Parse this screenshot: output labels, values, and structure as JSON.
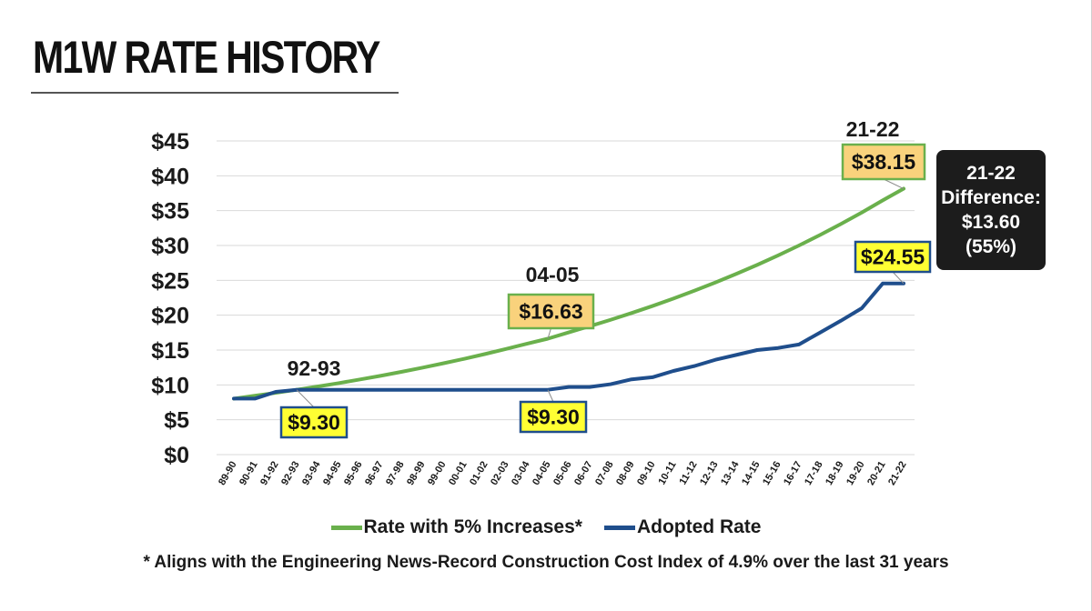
{
  "title": "M1W RATE HISTORY",
  "legend": {
    "items": [
      {
        "label": "Rate with 5% Increases*",
        "color": "#6ab04c"
      },
      {
        "label": "Adopted Rate",
        "color": "#1f4e8c"
      }
    ],
    "placement": "bottom"
  },
  "footnote": "* Aligns with the Engineering News-Record Construction Cost Index of 4.9% over the last 31 years",
  "difference_box": {
    "year": "21-22",
    "label": "Difference:",
    "amount": "$13.60",
    "percent": "(55%)"
  },
  "annotations": [
    {
      "year": "92-93",
      "value": "$9.30",
      "series": "Adopted Rate",
      "x_index": 3
    },
    {
      "year": "04-05",
      "value": "$16.63",
      "series": "Rate with 5% Increases*",
      "x_index": 15
    },
    {
      "value": "$9.30",
      "series": "Adopted Rate",
      "x_index": 15
    },
    {
      "year": "21-22",
      "value": "$38.15",
      "series": "Rate with 5% Increases*",
      "x_index": 32
    },
    {
      "value": "$24.55",
      "series": "Adopted Rate",
      "x_index": 32
    }
  ],
  "chart_data": {
    "type": "line",
    "title": "M1W RATE HISTORY",
    "xlabel": "",
    "ylabel": "",
    "ylim": [
      0,
      45
    ],
    "yticks": [
      0,
      5,
      10,
      15,
      20,
      25,
      30,
      35,
      40,
      45
    ],
    "ytick_labels": [
      "$0",
      "$5",
      "$10",
      "$15",
      "$20",
      "$25",
      "$30",
      "$35",
      "$40",
      "$45"
    ],
    "grid": true,
    "categories": [
      "89-90",
      "90-91",
      "91-92",
      "92-93",
      "93-94",
      "94-95",
      "95-96",
      "96-97",
      "97-98",
      "98-99",
      "99-00",
      "00-01",
      "01-02",
      "02-03",
      "03-04",
      "04-05",
      "05-06",
      "06-07",
      "07-08",
      "08-09",
      "09-10",
      "10-11",
      "11-12",
      "12-13",
      "13-14",
      "14-15",
      "15-16",
      "16-17",
      "17-18",
      "18-19",
      "19-20",
      "20-21",
      "21-22"
    ],
    "series": [
      {
        "name": "Rate with 5% Increases*",
        "color": "#6ab04c",
        "values": [
          8.03,
          8.44,
          8.86,
          9.3,
          9.77,
          10.25,
          10.77,
          11.3,
          11.87,
          12.46,
          13.09,
          13.74,
          14.43,
          15.15,
          15.91,
          16.63,
          17.54,
          18.42,
          19.34,
          20.31,
          21.32,
          22.39,
          23.51,
          24.68,
          25.92,
          27.21,
          28.57,
          30.0,
          31.5,
          33.08,
          34.73,
          36.47,
          38.15
        ]
      },
      {
        "name": "Adopted Rate",
        "color": "#1f4e8c",
        "values": [
          8.03,
          8.03,
          9.0,
          9.3,
          9.3,
          9.3,
          9.3,
          9.3,
          9.3,
          9.3,
          9.3,
          9.3,
          9.3,
          9.3,
          9.3,
          9.3,
          9.7,
          9.7,
          10.1,
          10.8,
          11.1,
          12.0,
          12.7,
          13.6,
          14.3,
          15.0,
          15.3,
          15.8,
          17.5,
          19.2,
          21.0,
          24.55,
          24.55
        ]
      }
    ]
  }
}
